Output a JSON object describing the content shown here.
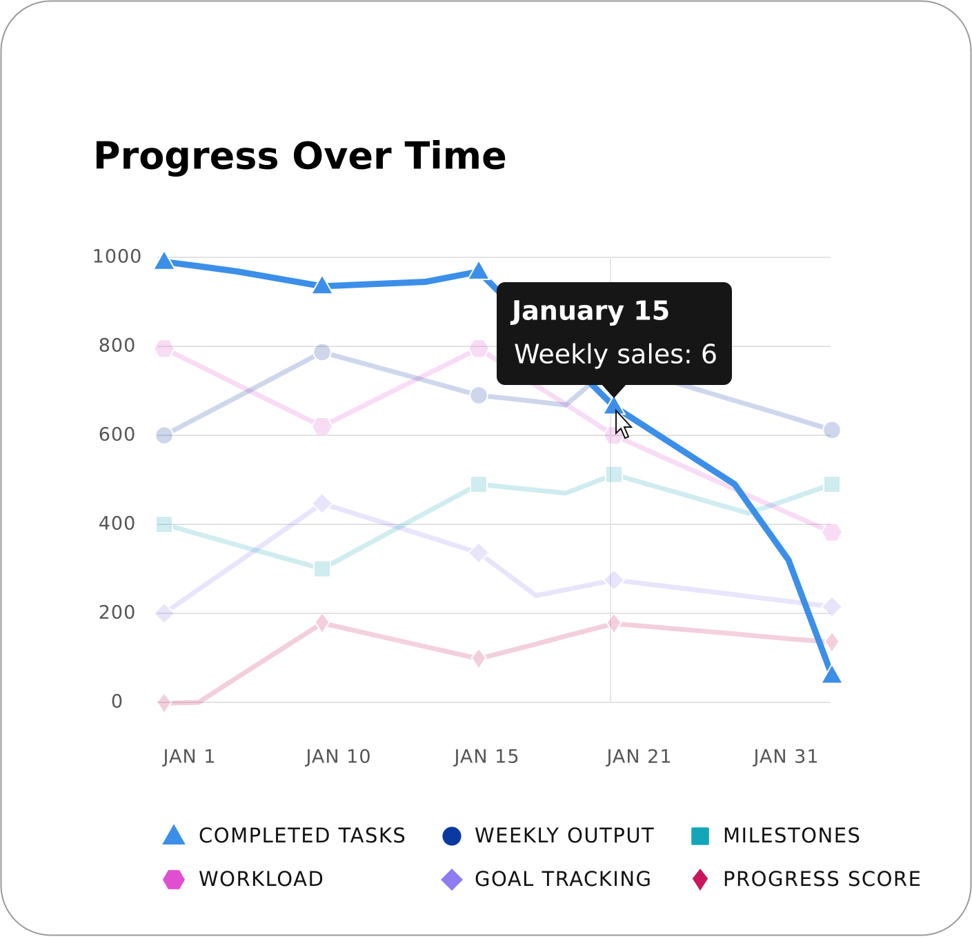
{
  "chart_data": {
    "type": "line",
    "title": "Progress Over Time",
    "categories": [
      "JAN 1",
      null,
      null,
      "JAN 10",
      null,
      "JAN 15",
      null,
      null,
      "JAN 21",
      null,
      null,
      null,
      "JAN 31"
    ],
    "series": [
      {
        "name": "COMPLETED TASKS",
        "color": "#3b8fe8",
        "marker": "triangle",
        "values": [
          990,
          980,
          968,
          935,
          945,
          968,
          840,
          773,
          665,
          490,
          446,
          320,
          60
        ]
      },
      {
        "name": "WEEKLY OUTPUT",
        "color": "#0a3aa0",
        "marker": "circle",
        "values": [
          600,
          641,
          687,
          787,
          723,
          690,
          676,
          668,
          760,
          678,
          669,
          642,
          612
        ]
      },
      {
        "name": "MILESTONES",
        "color": "#13a6b8",
        "marker": "square",
        "values": [
          400,
          378,
          353,
          300,
          426,
          490,
          477,
          470,
          512,
          434,
          425,
          456,
          490
        ]
      },
      {
        "name": "WORKLOAD",
        "color": "#e04fcf",
        "marker": "hexagon",
        "values": [
          795,
          757,
          713,
          620,
          736,
          795,
          712,
          670,
          600,
          479,
          465,
          425,
          382
        ]
      },
      {
        "name": "GOAL TRACKING",
        "color": "#8e7cf0",
        "marker": "diamond",
        "values": [
          200,
          254,
          315,
          447,
          374,
          336,
          240,
          253,
          275,
          242,
          238,
          227,
          215
        ]
      },
      {
        "name": "PROGRESS SCORE",
        "color": "#c8175d",
        "marker": "thin-diamond",
        "values": [
          -2,
          0,
          57,
          178,
          125,
          98,
          131,
          149,
          177,
          154,
          151,
          143,
          135
        ]
      }
    ],
    "ylim": [
      0,
      1000
    ],
    "yticks": [
      0,
      200,
      400,
      600,
      800,
      1000
    ],
    "grid": true,
    "tooltip": {
      "title": "January 15",
      "text": "Weekly sales: 6"
    }
  }
}
